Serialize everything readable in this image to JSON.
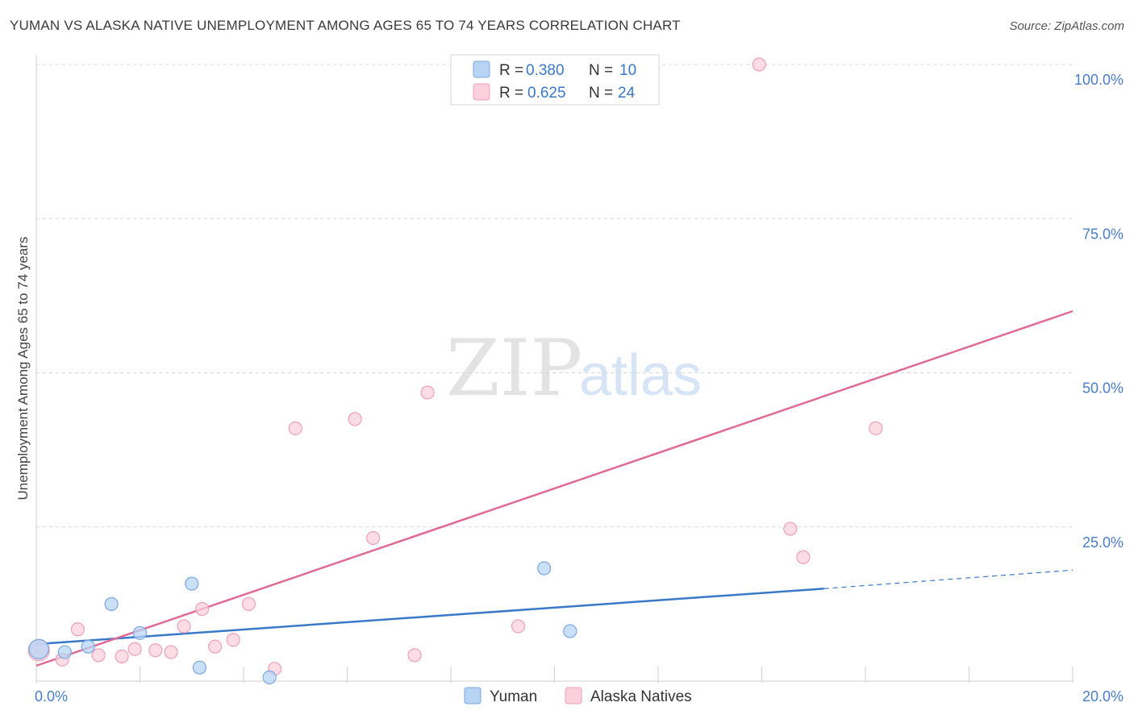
{
  "title": "YUMAN VS ALASKA NATIVE UNEMPLOYMENT AMONG AGES 65 TO 74 YEARS CORRELATION CHART",
  "source": "Source: ZipAtlas.com",
  "watermark": {
    "zip": "ZIP",
    "atlas": "atlas"
  },
  "legend": {
    "r_label": "R =",
    "n_label": "N =",
    "series": [
      {
        "r": "0.380",
        "n": "10"
      },
      {
        "r": "0.625",
        "n": "24"
      }
    ]
  },
  "colors": {
    "yuman_fill": "#b8d4f5",
    "yuman_stroke": "#7aa8e0",
    "yuman_line": "#3a78c8",
    "alaska_fill": "#fbd0dc",
    "alaska_stroke": "#eea0b8",
    "alaska_line": "#e06a95",
    "grid": "#d8d8d8",
    "tick_text": "#4a7cc9"
  },
  "chart_data": {
    "type": "scatter",
    "title": "YUMAN VS ALASKA NATIVE UNEMPLOYMENT AMONG AGES 65 TO 74 YEARS CORRELATION CHART",
    "xlabel": "",
    "ylabel": "Unemployment Among Ages 65 to 74 years",
    "xlim": [
      0,
      20
    ],
    "ylim": [
      0,
      100
    ],
    "x_tick_labels": [
      "0.0%",
      "20.0%"
    ],
    "y_ticks": [
      100,
      75,
      50,
      25
    ],
    "y_tick_labels": [
      "100.0%",
      "75.0%",
      "50.0%",
      "25.0%"
    ],
    "series": [
      {
        "name": "Yuman",
        "points": [
          [
            0.05,
            5.2
          ],
          [
            0.55,
            4.7
          ],
          [
            1.0,
            5.6
          ],
          [
            1.45,
            12.5
          ],
          [
            2.0,
            7.8
          ],
          [
            3.0,
            15.8
          ],
          [
            3.15,
            2.2
          ],
          [
            4.5,
            0.6
          ],
          [
            9.8,
            18.3
          ],
          [
            10.3,
            8.1
          ]
        ],
        "trend": {
          "x0": 0,
          "y0": 6.0,
          "x1": 15.2,
          "y1": 15.0,
          "dash_to_x": 20,
          "dash_to_y": 18.0
        }
      },
      {
        "name": "Alaska Natives",
        "points": [
          [
            0.05,
            5.0
          ],
          [
            0.5,
            3.5
          ],
          [
            0.8,
            8.4
          ],
          [
            1.2,
            4.2
          ],
          [
            1.65,
            4.0
          ],
          [
            1.9,
            5.2
          ],
          [
            2.3,
            5.0
          ],
          [
            2.6,
            4.7
          ],
          [
            2.85,
            8.9
          ],
          [
            3.2,
            11.7
          ],
          [
            3.45,
            5.6
          ],
          [
            3.8,
            6.7
          ],
          [
            4.1,
            12.5
          ],
          [
            4.6,
            2.0
          ],
          [
            5.0,
            41.0
          ],
          [
            6.15,
            42.5
          ],
          [
            6.5,
            23.2
          ],
          [
            7.3,
            4.2
          ],
          [
            7.55,
            46.8
          ],
          [
            9.3,
            8.9
          ],
          [
            13.95,
            100.0
          ],
          [
            14.55,
            24.7
          ],
          [
            14.8,
            20.1
          ],
          [
            16.2,
            41.0
          ]
        ],
        "trend": {
          "x0": 0,
          "y0": 2.5,
          "x1": 20,
          "y1": 60.0
        }
      }
    ]
  }
}
